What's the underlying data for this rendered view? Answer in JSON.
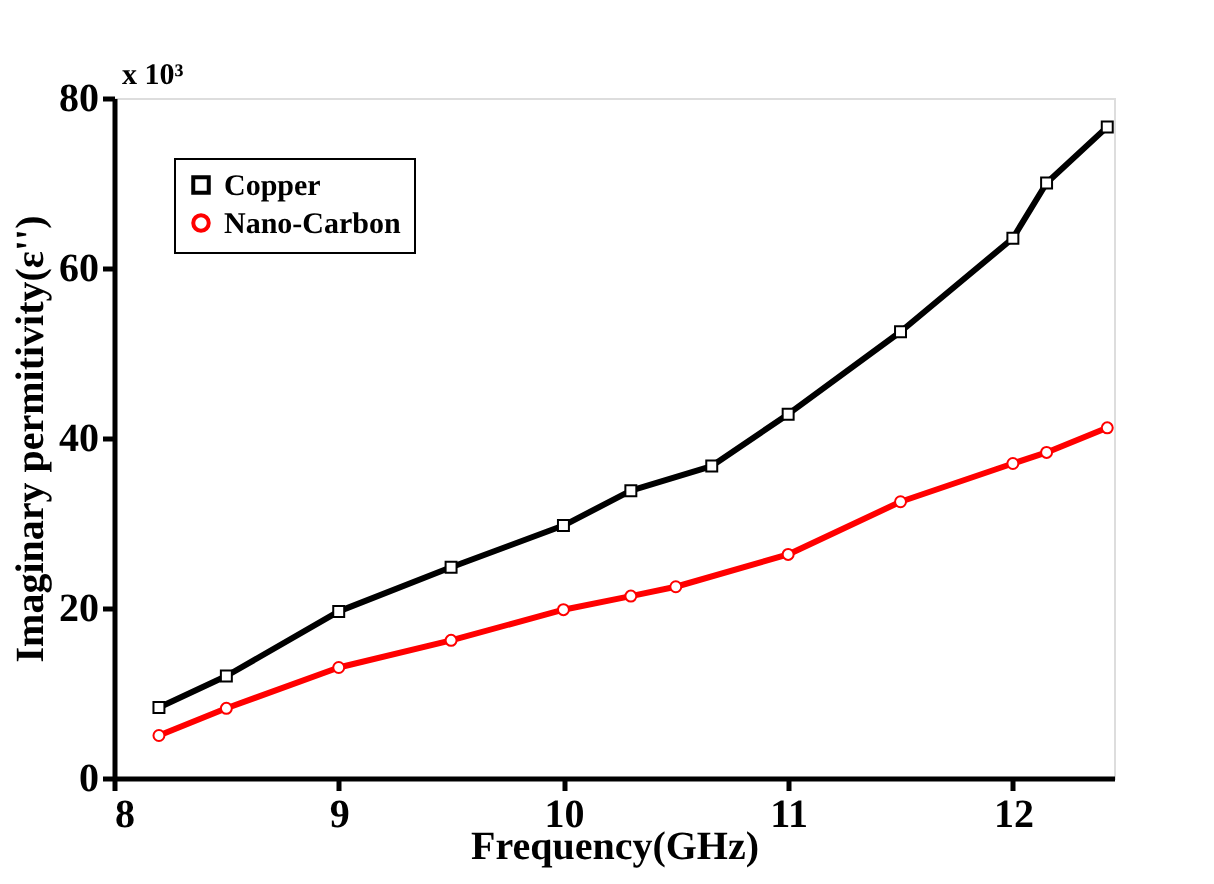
{
  "chart_data": {
    "type": "line",
    "xlabel": "Frequency(GHz)",
    "ylabel": "Imaginary permitivity(ε'')",
    "annotations": [
      "x 10³"
    ],
    "xlim": [
      8,
      12.45
    ],
    "xticks": [
      8,
      9,
      10,
      11,
      12
    ],
    "ylim": [
      0,
      80
    ],
    "yticks": [
      0,
      20,
      40,
      60,
      80
    ],
    "grid": false,
    "legend": "top left",
    "series": [
      {
        "name": "Copper",
        "color": "#000000",
        "marker": "square",
        "x": [
          8.2,
          8.5,
          9.0,
          9.5,
          10.0,
          10.3,
          10.66,
          11.0,
          11.5,
          12.0,
          12.15,
          12.42
        ],
        "values": [
          8.3,
          12,
          19.6,
          24.8,
          29.7,
          33.8,
          36.7,
          42.8,
          52.5,
          63.5,
          70,
          76.6
        ]
      },
      {
        "name": "Nano-Carbon",
        "color": "#ff0000",
        "marker": "circle",
        "x": [
          8.2,
          8.5,
          9.0,
          9.5,
          10.0,
          10.3,
          10.5,
          11.0,
          11.5,
          12.0,
          12.15,
          12.42
        ],
        "values": [
          5,
          8.2,
          13,
          16.2,
          19.8,
          21.4,
          22.5,
          26.3,
          32.5,
          37,
          38.3,
          41.2
        ]
      }
    ]
  }
}
